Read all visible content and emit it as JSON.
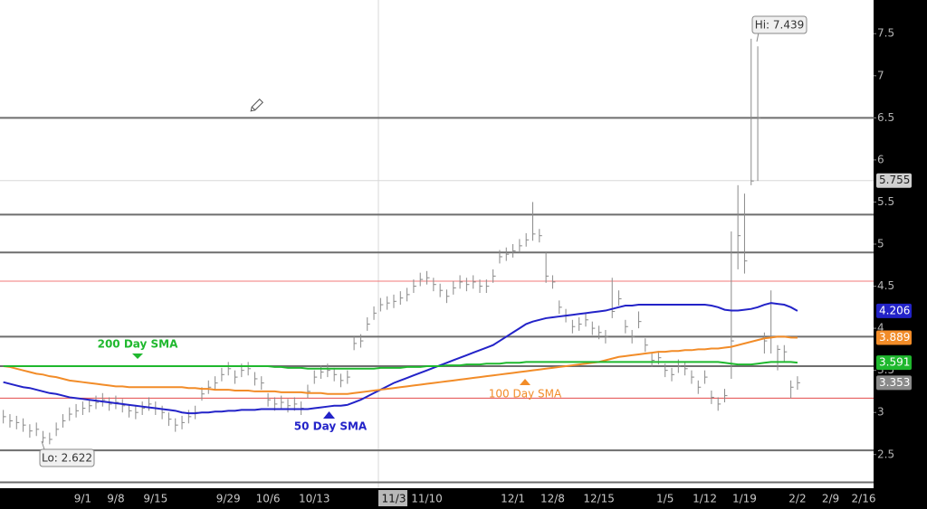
{
  "chart_data": {
    "type": "ohlc",
    "categories": [
      null,
      null,
      null,
      null,
      null,
      null,
      null,
      null,
      null,
      null,
      null,
      null,
      "9/1",
      null,
      null,
      null,
      null,
      "9/8",
      null,
      null,
      null,
      null,
      null,
      "9/15",
      null,
      null,
      null,
      null,
      null,
      null,
      null,
      null,
      null,
      null,
      "9/29",
      null,
      null,
      null,
      null,
      null,
      "10/6",
      null,
      null,
      null,
      null,
      null,
      null,
      "10/13",
      null,
      null,
      null,
      null,
      null,
      null,
      null,
      null,
      null,
      null,
      null,
      "11/3",
      null,
      null,
      null,
      null,
      "11/10",
      null,
      null,
      null,
      null,
      null,
      null,
      null,
      null,
      null,
      null,
      null,
      null,
      "12/1",
      null,
      null,
      null,
      null,
      null,
      "12/8",
      null,
      null,
      null,
      null,
      null,
      null,
      "12/15",
      null,
      null,
      null,
      null,
      null,
      null,
      null,
      null,
      null,
      "1/5",
      null,
      null,
      null,
      null,
      null,
      "1/12",
      null,
      null,
      null,
      null,
      null,
      "1/19",
      null,
      null,
      null,
      null,
      null,
      null,
      null,
      "2/2",
      null,
      null,
      null,
      null,
      "2/9",
      null,
      null,
      null,
      null,
      "2/16",
      null
    ],
    "ohlc": {
      "color": "#8a8a8a",
      "high": [
        3.03,
        2.98,
        2.96,
        2.93,
        2.86,
        2.88,
        2.78,
        2.76,
        2.88,
        2.98,
        3.06,
        3.1,
        3.13,
        3.16,
        3.2,
        3.23,
        3.18,
        3.2,
        3.16,
        3.1,
        3.08,
        3.13,
        3.18,
        3.13,
        3.08,
        3.0,
        2.93,
        2.96,
        3.03,
        3.08,
        3.3,
        3.38,
        3.43,
        3.53,
        3.6,
        3.5,
        3.58,
        3.6,
        3.48,
        3.43,
        3.23,
        3.18,
        3.2,
        3.16,
        3.18,
        3.13,
        3.33,
        3.5,
        3.56,
        3.58,
        3.53,
        3.46,
        3.5,
        3.9,
        3.93,
        4.13,
        4.26,
        4.36,
        4.38,
        4.4,
        4.44,
        4.48,
        4.58,
        4.66,
        4.68,
        4.6,
        4.53,
        4.46,
        4.56,
        4.63,
        4.6,
        4.63,
        4.58,
        4.58,
        4.7,
        4.93,
        4.96,
        5.0,
        5.06,
        5.13,
        5.5,
        5.18,
        4.9,
        4.63,
        4.33,
        4.23,
        4.1,
        4.13,
        4.18,
        4.08,
        4.03,
        3.98,
        4.6,
        4.45,
        4.1,
        3.98,
        4.2,
        3.88,
        3.7,
        3.73,
        3.58,
        3.53,
        3.63,
        3.6,
        3.5,
        3.38,
        3.5,
        3.26,
        3.18,
        3.28,
        5.15,
        5.7,
        5.6,
        7.439,
        7.35,
        3.95,
        4.45,
        3.8,
        3.8,
        3.38,
        3.43,
        null,
        null,
        null,
        null,
        null,
        null,
        null,
        null,
        null,
        null,
        null
      ],
      "low": [
        2.87,
        2.82,
        2.8,
        2.77,
        2.7,
        2.72,
        2.64,
        2.622,
        2.72,
        2.82,
        2.9,
        2.94,
        2.97,
        3.0,
        3.04,
        3.07,
        3.02,
        3.04,
        3.0,
        2.94,
        2.92,
        2.97,
        3.02,
        2.97,
        2.92,
        2.84,
        2.77,
        2.8,
        2.87,
        2.92,
        3.14,
        3.22,
        3.27,
        3.37,
        3.44,
        3.34,
        3.42,
        3.44,
        3.32,
        3.27,
        3.07,
        3.02,
        3.04,
        3.0,
        3.02,
        2.97,
        3.17,
        3.34,
        3.4,
        3.42,
        3.37,
        3.3,
        3.34,
        3.74,
        3.77,
        3.97,
        4.1,
        4.2,
        4.22,
        4.24,
        4.28,
        4.32,
        4.42,
        4.5,
        4.52,
        4.44,
        4.37,
        4.3,
        4.4,
        4.47,
        4.44,
        4.47,
        4.42,
        4.42,
        4.54,
        4.77,
        4.8,
        4.84,
        4.9,
        4.97,
        5.04,
        5.02,
        4.54,
        4.47,
        4.17,
        4.07,
        3.94,
        3.97,
        4.02,
        3.92,
        3.87,
        3.82,
        4.12,
        4.27,
        3.94,
        3.82,
        4.0,
        3.72,
        3.54,
        3.57,
        3.42,
        3.37,
        3.47,
        3.44,
        3.34,
        3.22,
        3.34,
        3.1,
        3.02,
        3.12,
        3.4,
        4.7,
        4.65,
        5.7,
        5.75,
        3.7,
        3.7,
        3.5,
        3.6,
        3.17,
        3.27,
        null,
        null,
        null,
        null,
        null,
        null,
        null,
        null,
        null,
        null,
        null
      ],
      "close": [
        2.95,
        2.9,
        2.88,
        2.85,
        2.78,
        2.8,
        2.7,
        2.68,
        2.8,
        2.9,
        2.98,
        3.02,
        3.05,
        3.08,
        3.12,
        3.15,
        3.1,
        3.12,
        3.08,
        3.02,
        3.0,
        3.05,
        3.1,
        3.05,
        3.0,
        2.92,
        2.85,
        2.88,
        2.95,
        3.0,
        3.22,
        3.3,
        3.35,
        3.45,
        3.52,
        3.42,
        3.5,
        3.52,
        3.4,
        3.35,
        3.15,
        3.1,
        3.12,
        3.08,
        3.1,
        3.05,
        3.25,
        3.42,
        3.48,
        3.5,
        3.45,
        3.38,
        3.42,
        3.82,
        3.85,
        4.05,
        4.18,
        4.28,
        4.3,
        4.32,
        4.36,
        4.4,
        4.5,
        4.58,
        4.6,
        4.52,
        4.45,
        4.38,
        4.48,
        4.55,
        4.52,
        4.55,
        4.5,
        4.5,
        4.62,
        4.85,
        4.88,
        4.92,
        4.98,
        5.05,
        5.12,
        5.1,
        4.62,
        4.55,
        4.25,
        4.15,
        4.02,
        4.05,
        4.1,
        4.0,
        3.95,
        3.9,
        4.2,
        4.35,
        4.02,
        3.9,
        4.08,
        3.8,
        3.62,
        3.65,
        3.5,
        3.45,
        3.55,
        3.52,
        3.42,
        3.3,
        3.42,
        3.18,
        3.1,
        3.2,
        3.85,
        5.1,
        4.8,
        5.75,
        6.5,
        3.85,
        3.9,
        3.75,
        3.72,
        3.3,
        3.353,
        null,
        null,
        null,
        null,
        null,
        null,
        null,
        null,
        null,
        null,
        null
      ]
    },
    "series": [
      {
        "name": "50 Day SMA",
        "color": "#2323c8",
        "values": [
          3.36,
          3.34,
          3.32,
          3.3,
          3.29,
          3.27,
          3.25,
          3.23,
          3.22,
          3.2,
          3.18,
          3.17,
          3.16,
          3.15,
          3.14,
          3.13,
          3.12,
          3.11,
          3.1,
          3.09,
          3.08,
          3.07,
          3.06,
          3.05,
          3.04,
          3.03,
          3.02,
          3.0,
          2.99,
          2.99,
          3.0,
          3.0,
          3.01,
          3.01,
          3.02,
          3.02,
          3.03,
          3.03,
          3.03,
          3.04,
          3.04,
          3.04,
          3.04,
          3.04,
          3.04,
          3.04,
          3.04,
          3.05,
          3.06,
          3.07,
          3.08,
          3.08,
          3.09,
          3.12,
          3.15,
          3.19,
          3.23,
          3.27,
          3.31,
          3.35,
          3.38,
          3.41,
          3.44,
          3.47,
          3.5,
          3.53,
          3.56,
          3.59,
          3.62,
          3.65,
          3.68,
          3.71,
          3.74,
          3.77,
          3.8,
          3.85,
          3.9,
          3.95,
          4.0,
          4.05,
          4.08,
          4.1,
          4.12,
          4.13,
          4.14,
          4.15,
          4.16,
          4.17,
          4.18,
          4.19,
          4.2,
          4.21,
          4.23,
          4.25,
          4.27,
          4.27,
          4.28,
          4.28,
          4.28,
          4.28,
          4.28,
          4.28,
          4.28,
          4.28,
          4.28,
          4.28,
          4.28,
          4.27,
          4.25,
          4.22,
          4.21,
          4.21,
          4.22,
          4.23,
          4.25,
          4.28,
          4.3,
          4.29,
          4.28,
          4.25,
          4.206,
          null,
          null,
          null,
          null,
          null,
          null,
          null,
          null,
          null,
          null,
          null
        ]
      },
      {
        "name": "100  Day SMA",
        "color": "#f28c28",
        "values": [
          3.55,
          3.54,
          3.52,
          3.5,
          3.48,
          3.46,
          3.45,
          3.43,
          3.42,
          3.4,
          3.38,
          3.37,
          3.36,
          3.35,
          3.34,
          3.33,
          3.32,
          3.31,
          3.31,
          3.3,
          3.3,
          3.3,
          3.3,
          3.3,
          3.3,
          3.3,
          3.3,
          3.3,
          3.29,
          3.29,
          3.28,
          3.28,
          3.27,
          3.27,
          3.27,
          3.26,
          3.26,
          3.26,
          3.25,
          3.25,
          3.25,
          3.25,
          3.24,
          3.24,
          3.24,
          3.24,
          3.23,
          3.23,
          3.23,
          3.22,
          3.22,
          3.22,
          3.22,
          3.23,
          3.24,
          3.25,
          3.26,
          3.27,
          3.28,
          3.29,
          3.3,
          3.31,
          3.32,
          3.33,
          3.34,
          3.35,
          3.36,
          3.37,
          3.38,
          3.39,
          3.4,
          3.41,
          3.42,
          3.43,
          3.44,
          3.45,
          3.46,
          3.47,
          3.48,
          3.49,
          3.5,
          3.51,
          3.52,
          3.53,
          3.54,
          3.55,
          3.56,
          3.57,
          3.58,
          3.59,
          3.6,
          3.62,
          3.64,
          3.66,
          3.67,
          3.68,
          3.69,
          3.7,
          3.71,
          3.72,
          3.72,
          3.73,
          3.73,
          3.74,
          3.74,
          3.75,
          3.75,
          3.76,
          3.76,
          3.77,
          3.78,
          3.8,
          3.82,
          3.84,
          3.86,
          3.88,
          3.89,
          3.9,
          3.9,
          3.89,
          3.889,
          null,
          null,
          null,
          null,
          null,
          null,
          null,
          null,
          null,
          null,
          null
        ]
      },
      {
        "name": "200 Day SMA",
        "color": "#1fb82e",
        "values": [
          3.55,
          3.55,
          3.55,
          3.55,
          3.55,
          3.55,
          3.55,
          3.55,
          3.55,
          3.55,
          3.55,
          3.55,
          3.55,
          3.55,
          3.55,
          3.55,
          3.55,
          3.55,
          3.55,
          3.55,
          3.55,
          3.55,
          3.55,
          3.55,
          3.55,
          3.55,
          3.55,
          3.55,
          3.55,
          3.55,
          3.55,
          3.55,
          3.55,
          3.55,
          3.55,
          3.55,
          3.55,
          3.55,
          3.55,
          3.55,
          3.55,
          3.54,
          3.54,
          3.53,
          3.53,
          3.53,
          3.52,
          3.52,
          3.52,
          3.52,
          3.52,
          3.52,
          3.52,
          3.52,
          3.52,
          3.52,
          3.52,
          3.53,
          3.53,
          3.53,
          3.53,
          3.54,
          3.54,
          3.54,
          3.55,
          3.55,
          3.55,
          3.56,
          3.56,
          3.56,
          3.57,
          3.57,
          3.57,
          3.58,
          3.58,
          3.58,
          3.59,
          3.59,
          3.59,
          3.6,
          3.6,
          3.6,
          3.6,
          3.6,
          3.6,
          3.6,
          3.6,
          3.6,
          3.6,
          3.6,
          3.6,
          3.6,
          3.6,
          3.6,
          3.6,
          3.6,
          3.6,
          3.6,
          3.6,
          3.6,
          3.6,
          3.6,
          3.6,
          3.6,
          3.6,
          3.6,
          3.6,
          3.6,
          3.6,
          3.59,
          3.58,
          3.57,
          3.57,
          3.57,
          3.58,
          3.59,
          3.6,
          3.6,
          3.6,
          3.6,
          3.591,
          null,
          null,
          null,
          null,
          null,
          null,
          null,
          null,
          null,
          null,
          null
        ]
      }
    ],
    "levels": [
      {
        "value": 6.5,
        "color": "#6e6e6e",
        "width": 2
      },
      {
        "value": 5.755,
        "color": "#d8d8d8",
        "width": 1,
        "badge": true
      },
      {
        "value": 5.35,
        "color": "#6e6e6e",
        "width": 2
      },
      {
        "value": 4.9,
        "color": "#6e6e6e",
        "width": 2
      },
      {
        "value": 4.56,
        "color": "#f07a7a",
        "width": 1
      },
      {
        "value": 3.9,
        "color": "#6e6e6e",
        "width": 2
      },
      {
        "value": 3.55,
        "color": "#6e6e6e",
        "width": 2
      },
      {
        "value": 3.17,
        "color": "#e24a4a",
        "width": 1
      },
      {
        "value": 2.55,
        "color": "#6e6e6e",
        "width": 2
      },
      {
        "value": 2.17,
        "color": "#6e6e6e",
        "width": 2
      }
    ],
    "annotations": [
      "Hi: 7.439",
      "Lo: 2.622"
    ],
    "crosshair": 59,
    "ylim": [
      2.1,
      7.9
    ],
    "yticks": [
      2.5,
      3,
      3.5,
      4,
      4.5,
      5,
      5.5,
      6,
      6.5,
      7,
      7.5
    ]
  }
}
